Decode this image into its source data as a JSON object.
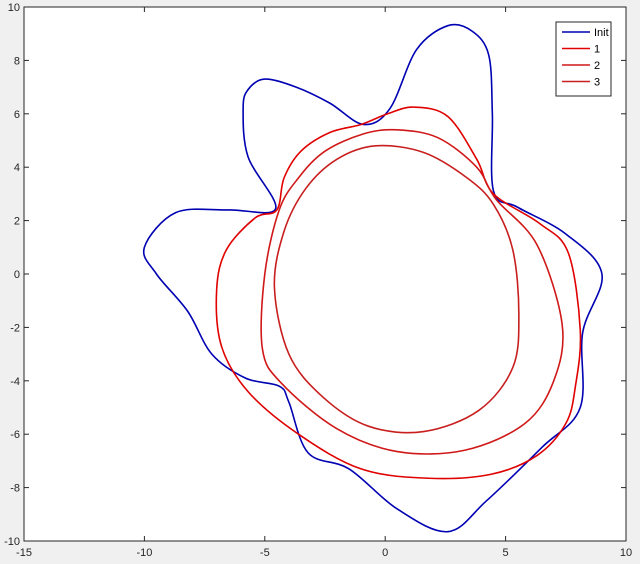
{
  "chart_data": {
    "type": "line",
    "title": "",
    "xlabel": "",
    "ylabel": "",
    "xlim": [
      -15,
      10
    ],
    "ylim": [
      -10,
      10
    ],
    "xticks": [
      -15,
      -10,
      -5,
      0,
      5,
      10
    ],
    "yticks": [
      -10,
      -8,
      -6,
      -4,
      -2,
      0,
      2,
      4,
      6,
      8,
      10
    ],
    "grid": false,
    "legend_position": "top-right",
    "aspect": "equal",
    "series": [
      {
        "name": "Init",
        "color": "#0000b3",
        "closed": true,
        "points": [
          [
            9.0,
            0.0
          ],
          [
            8.2,
            -2.2
          ],
          [
            8.1,
            -5.0
          ],
          [
            6.5,
            -6.5
          ],
          [
            4.2,
            -8.5
          ],
          [
            2.6,
            -9.65
          ],
          [
            0.5,
            -8.8
          ],
          [
            -1.5,
            -7.3
          ],
          [
            -3.2,
            -6.7
          ],
          [
            -4.0,
            -4.8
          ],
          [
            -4.4,
            -4.2
          ],
          [
            -5.8,
            -3.9
          ],
          [
            -7.2,
            -3.0
          ],
          [
            -8.2,
            -1.4
          ],
          [
            -9.5,
            0.0
          ],
          [
            -10.0,
            1.0
          ],
          [
            -8.7,
            2.3
          ],
          [
            -6.5,
            2.4
          ],
          [
            -4.55,
            2.45
          ],
          [
            -5.7,
            4.4
          ],
          [
            -5.9,
            6.2
          ],
          [
            -5.7,
            6.9
          ],
          [
            -5.0,
            7.3
          ],
          [
            -3.7,
            7.0
          ],
          [
            -2.3,
            6.4
          ],
          [
            -0.9,
            5.6
          ],
          [
            0.2,
            6.2
          ],
          [
            1.3,
            8.4
          ],
          [
            2.6,
            9.3
          ],
          [
            3.6,
            9.1
          ],
          [
            4.3,
            8.2
          ],
          [
            4.45,
            6.0
          ],
          [
            4.5,
            3.1
          ],
          [
            5.5,
            2.5
          ],
          [
            7.5,
            1.5
          ]
        ]
      },
      {
        "name": "1",
        "color": "#e00000",
        "closed": true,
        "points": [
          [
            8.1,
            -2.1
          ],
          [
            7.9,
            -4.2
          ],
          [
            7.5,
            -5.6
          ],
          [
            6.3,
            -6.8
          ],
          [
            4.4,
            -7.5
          ],
          [
            1.8,
            -7.65
          ],
          [
            -1.0,
            -7.3
          ],
          [
            -3.6,
            -6.0
          ],
          [
            -5.7,
            -4.4
          ],
          [
            -6.8,
            -2.7
          ],
          [
            -7.0,
            -0.6
          ],
          [
            -6.6,
            0.9
          ],
          [
            -5.4,
            2.1
          ],
          [
            -4.5,
            2.4
          ],
          [
            -4.2,
            3.6
          ],
          [
            -3.5,
            4.6
          ],
          [
            -2.3,
            5.3
          ],
          [
            -1.0,
            5.6
          ],
          [
            0.1,
            6.0
          ],
          [
            1.2,
            6.25
          ],
          [
            2.6,
            5.9
          ],
          [
            3.8,
            4.3
          ],
          [
            4.5,
            3.0
          ],
          [
            6.4,
            1.9
          ],
          [
            7.6,
            0.8
          ]
        ]
      },
      {
        "name": "2",
        "color": "#d01818",
        "closed": true,
        "points": [
          [
            7.35,
            -1.9
          ],
          [
            7.0,
            -4.0
          ],
          [
            5.8,
            -5.6
          ],
          [
            3.3,
            -6.6
          ],
          [
            0.5,
            -6.65
          ],
          [
            -2.0,
            -5.8
          ],
          [
            -4.3,
            -4.1
          ],
          [
            -5.1,
            -2.8
          ],
          [
            -5.0,
            0.0
          ],
          [
            -4.4,
            2.4
          ],
          [
            -3.6,
            3.6
          ],
          [
            -2.5,
            4.6
          ],
          [
            -0.9,
            5.25
          ],
          [
            0.5,
            5.4
          ],
          [
            2.2,
            5.1
          ],
          [
            3.8,
            4.0
          ],
          [
            4.6,
            2.8
          ],
          [
            6.3,
            1.1
          ]
        ]
      },
      {
        "name": "3",
        "color": "#c81e1e",
        "closed": true,
        "points": [
          [
            5.55,
            -1.5
          ],
          [
            5.3,
            -3.5
          ],
          [
            3.9,
            -5.1
          ],
          [
            1.6,
            -5.9
          ],
          [
            -0.7,
            -5.7
          ],
          [
            -2.6,
            -4.6
          ],
          [
            -4.0,
            -3.0
          ],
          [
            -4.6,
            -0.5
          ],
          [
            -4.2,
            1.6
          ],
          [
            -3.3,
            3.2
          ],
          [
            -2.0,
            4.3
          ],
          [
            -0.4,
            4.8
          ],
          [
            1.6,
            4.55
          ],
          [
            3.4,
            3.6
          ],
          [
            4.5,
            2.6
          ],
          [
            5.3,
            0.9
          ]
        ]
      }
    ]
  }
}
